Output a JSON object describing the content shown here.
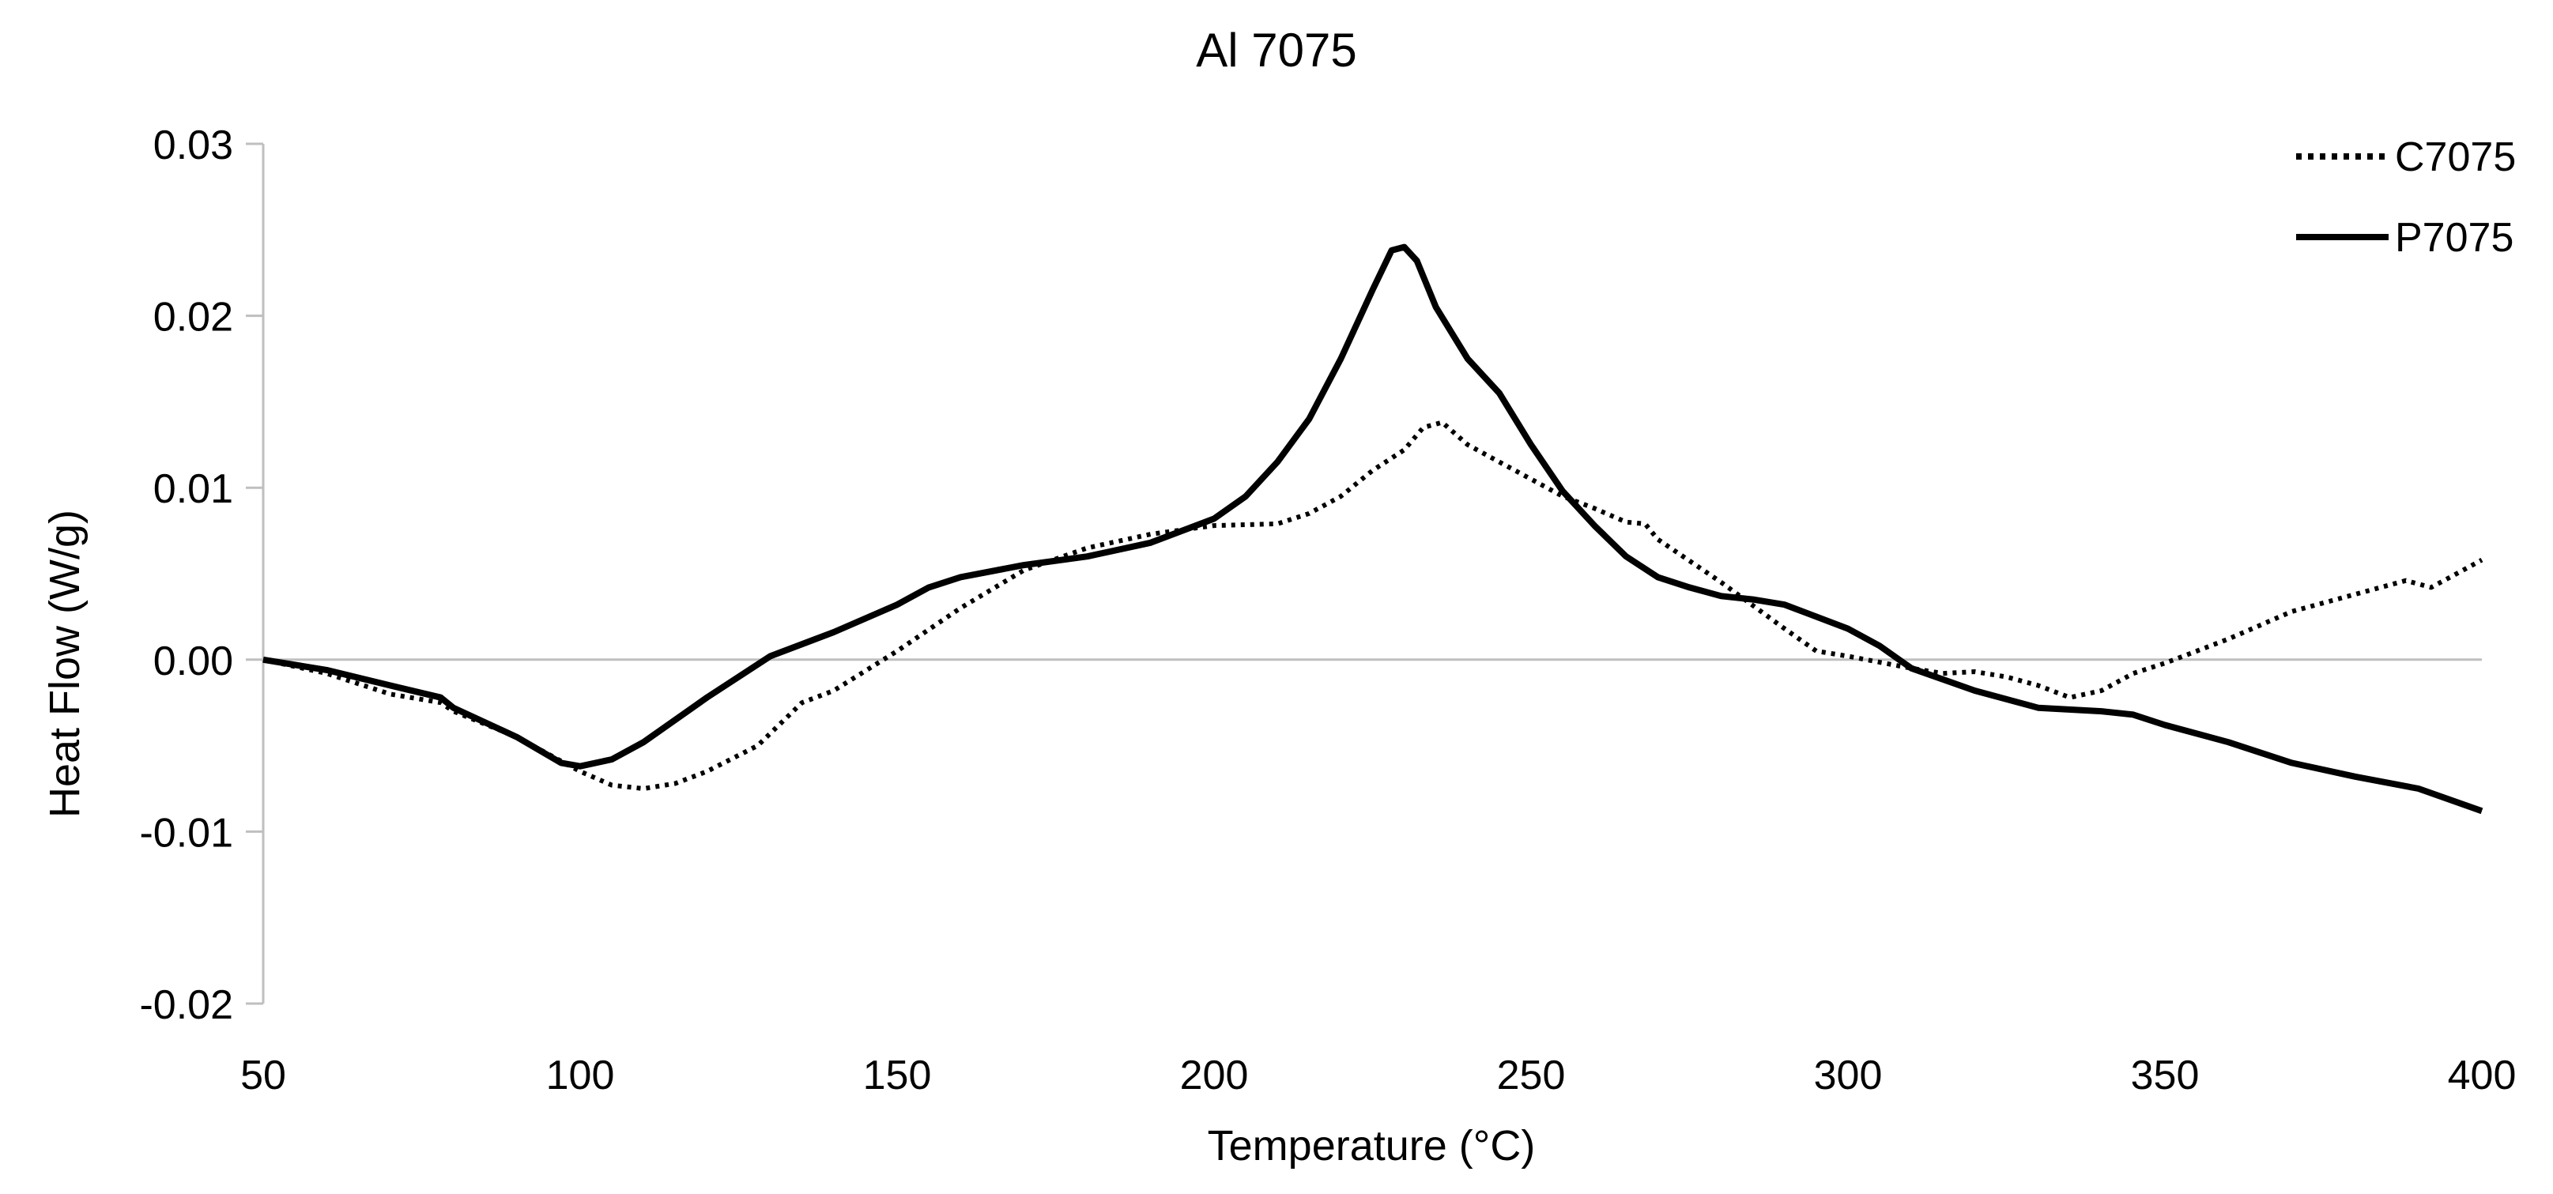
{
  "chart_data": {
    "type": "line",
    "title": "Al 7075",
    "xlabel": "Temperature (°C)",
    "ylabel": "Heat Flow (W/g)",
    "xlim": [
      50,
      400
    ],
    "ylim": [
      -0.02,
      0.03
    ],
    "x_ticks": [
      50,
      100,
      150,
      200,
      250,
      300,
      350,
      400
    ],
    "x_tick_labels": [
      "50",
      "100",
      "150",
      "200",
      "250",
      "300",
      "350",
      "400"
    ],
    "y_ticks": [
      0.03,
      0.02,
      0.01,
      0.0,
      -0.01,
      -0.02
    ],
    "y_tick_labels": [
      "0.03",
      "0.02",
      "0.01",
      "0.00",
      "-0.01",
      "-0.02"
    ],
    "grid": false,
    "legend_position": "top-right",
    "series": [
      {
        "name": "C7075",
        "style": "dotted",
        "color": "#000000",
        "points": [
          [
            50,
            0.0
          ],
          [
            60,
            -0.0008
          ],
          [
            70,
            -0.002
          ],
          [
            78,
            -0.0025
          ],
          [
            80,
            -0.003
          ],
          [
            90,
            -0.0045
          ],
          [
            100,
            -0.0065
          ],
          [
            105,
            -0.0073
          ],
          [
            110,
            -0.0075
          ],
          [
            115,
            -0.0072
          ],
          [
            120,
            -0.0065
          ],
          [
            128,
            -0.005
          ],
          [
            135,
            -0.0025
          ],
          [
            140,
            -0.0018
          ],
          [
            150,
            0.0005
          ],
          [
            160,
            0.003
          ],
          [
            170,
            0.0052
          ],
          [
            180,
            0.0065
          ],
          [
            190,
            0.0073
          ],
          [
            200,
            0.0078
          ],
          [
            210,
            0.0079
          ],
          [
            215,
            0.0085
          ],
          [
            220,
            0.0095
          ],
          [
            225,
            0.011
          ],
          [
            230,
            0.0122
          ],
          [
            233,
            0.0135
          ],
          [
            236,
            0.0138
          ],
          [
            240,
            0.0125
          ],
          [
            245,
            0.0115
          ],
          [
            250,
            0.0105
          ],
          [
            255,
            0.0095
          ],
          [
            260,
            0.0088
          ],
          [
            265,
            0.008
          ],
          [
            268,
            0.0079
          ],
          [
            270,
            0.007
          ],
          [
            280,
            0.0045
          ],
          [
            290,
            0.0018
          ],
          [
            295,
            0.0005
          ],
          [
            300,
            0.0002
          ],
          [
            310,
            -0.0005
          ],
          [
            315,
            -0.0008
          ],
          [
            320,
            -0.0007
          ],
          [
            325,
            -0.001
          ],
          [
            330,
            -0.0015
          ],
          [
            335,
            -0.0022
          ],
          [
            340,
            -0.0018
          ],
          [
            345,
            -0.0008
          ],
          [
            350,
            -0.0002
          ],
          [
            360,
            0.0012
          ],
          [
            370,
            0.0028
          ],
          [
            380,
            0.0038
          ],
          [
            388,
            0.0046
          ],
          [
            392,
            0.0042
          ],
          [
            395,
            0.0048
          ],
          [
            400,
            0.0058
          ]
        ]
      },
      {
        "name": "P7075",
        "style": "solid",
        "color": "#000000",
        "points": [
          [
            50,
            0.0
          ],
          [
            60,
            -0.0006
          ],
          [
            70,
            -0.0015
          ],
          [
            78,
            -0.0022
          ],
          [
            80,
            -0.0028
          ],
          [
            90,
            -0.0045
          ],
          [
            97,
            -0.006
          ],
          [
            100,
            -0.0062
          ],
          [
            105,
            -0.0058
          ],
          [
            110,
            -0.0048
          ],
          [
            120,
            -0.0022
          ],
          [
            130,
            0.0002
          ],
          [
            140,
            0.0016
          ],
          [
            150,
            0.0032
          ],
          [
            155,
            0.0042
          ],
          [
            160,
            0.0048
          ],
          [
            170,
            0.0055
          ],
          [
            180,
            0.006
          ],
          [
            190,
            0.0068
          ],
          [
            200,
            0.0082
          ],
          [
            205,
            0.0095
          ],
          [
            210,
            0.0115
          ],
          [
            215,
            0.014
          ],
          [
            220,
            0.0175
          ],
          [
            225,
            0.0215
          ],
          [
            228,
            0.0238
          ],
          [
            230,
            0.024
          ],
          [
            232,
            0.0232
          ],
          [
            235,
            0.0205
          ],
          [
            240,
            0.0175
          ],
          [
            245,
            0.0155
          ],
          [
            250,
            0.0125
          ],
          [
            255,
            0.0098
          ],
          [
            260,
            0.0078
          ],
          [
            265,
            0.006
          ],
          [
            270,
            0.0048
          ],
          [
            275,
            0.0042
          ],
          [
            280,
            0.0037
          ],
          [
            285,
            0.0035
          ],
          [
            290,
            0.0032
          ],
          [
            300,
            0.0018
          ],
          [
            305,
            0.0008
          ],
          [
            310,
            -0.0005
          ],
          [
            320,
            -0.0018
          ],
          [
            330,
            -0.0028
          ],
          [
            340,
            -0.003
          ],
          [
            345,
            -0.0032
          ],
          [
            350,
            -0.0038
          ],
          [
            360,
            -0.0048
          ],
          [
            370,
            -0.006
          ],
          [
            380,
            -0.0068
          ],
          [
            390,
            -0.0075
          ],
          [
            400,
            -0.0088
          ]
        ]
      }
    ]
  }
}
